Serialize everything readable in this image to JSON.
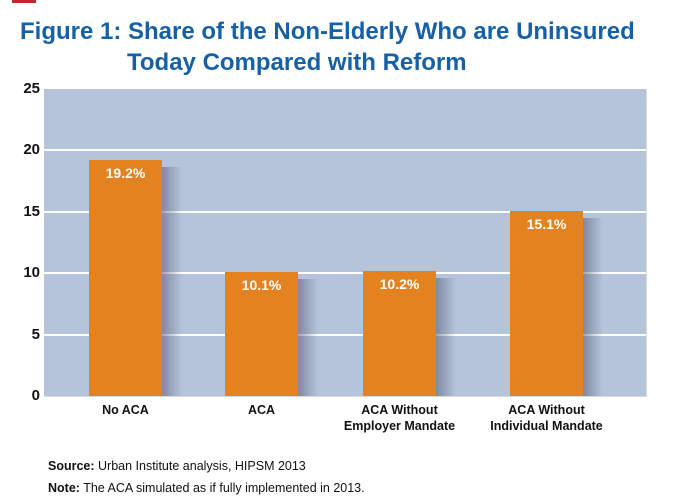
{
  "title": {
    "line1": "Figure 1: Share of the Non-Elderly Who are Uninsured",
    "line2": "Today Compared with Reform",
    "color": "#1661a6"
  },
  "chart_data": {
    "type": "bar",
    "title": "Figure 1: Share of the Non-Elderly Who are Uninsured Today Compared with Reform",
    "categories": [
      "No ACA",
      "ACA",
      "ACA Without Employer Mandate",
      "ACA Without Individual Mandate"
    ],
    "category_label_lines": [
      [
        "No ACA"
      ],
      [
        "ACA"
      ],
      [
        "ACA Without",
        "Employer Mandate"
      ],
      [
        "ACA Without",
        "Individual Mandate"
      ]
    ],
    "values": [
      19.2,
      10.1,
      10.2,
      15.1
    ],
    "value_labels": [
      "19.2%",
      "10.1%",
      "10.2%",
      "15.1%"
    ],
    "xlabel": "",
    "ylabel": "",
    "ylim": [
      0,
      25
    ],
    "yticks": [
      0,
      5,
      10,
      15,
      20,
      25
    ],
    "gridlines_at": [
      5,
      10,
      15,
      20
    ],
    "legend": "none",
    "grid": "horizontal-white",
    "bar_color": "#e3821e",
    "plot_bg_color": "#b6c4da",
    "value_label_color": "#ffffff",
    "axis_text_color": "#111111"
  },
  "footer": {
    "source_label": "Source:",
    "source_text": " Urban Institute analysis, HIPSM 2013",
    "note_label": "Note:",
    "note_text": " The ACA simulated as if fully implemented in 2013."
  }
}
